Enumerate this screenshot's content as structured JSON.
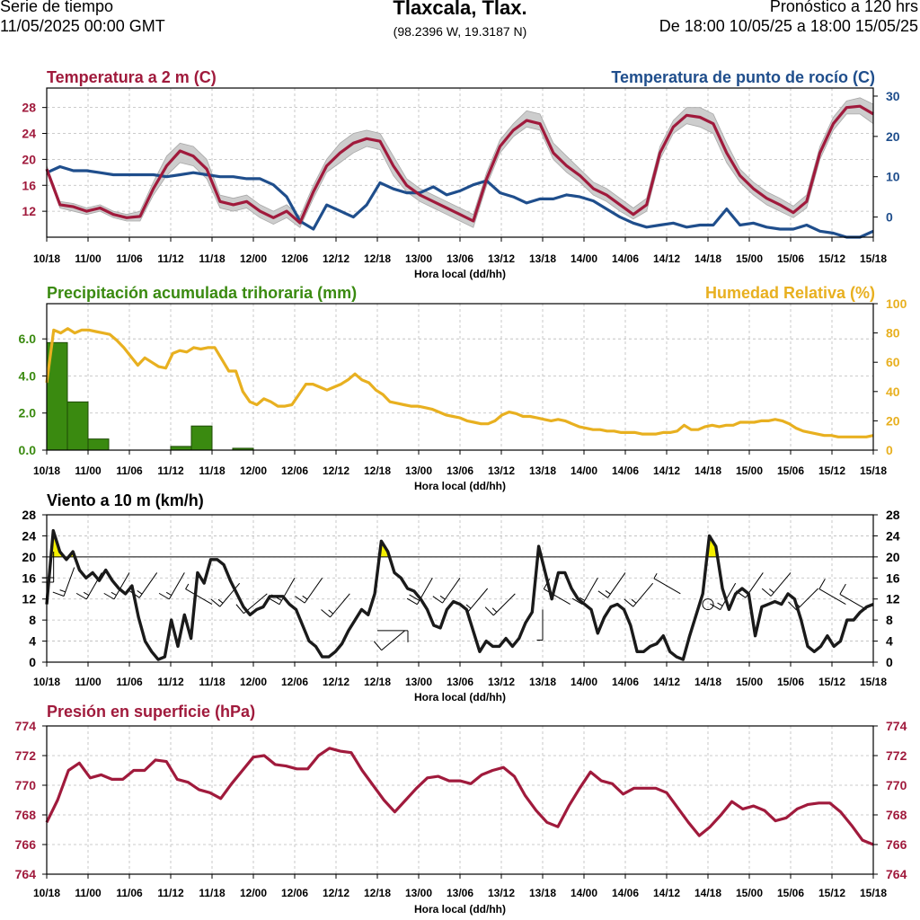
{
  "header": {
    "left_line1": "Serie de tiempo",
    "left_line2": "11/05/2025 00:00 GMT",
    "title": "Tlaxcala, Tlax.",
    "coords": "(98.2396 W, 19.3187 N)",
    "right_line1": "Pronóstico a 120 hrs",
    "right_line2": "De 18:00 10/05/25 a 18:00 15/05/25"
  },
  "colors": {
    "temperature": "#a01a3c",
    "dewpoint": "#1f4e8c",
    "precipitation": "#3a8a10",
    "humidity": "#e8b020",
    "wind": "#1a1a1a",
    "gust": "#f5f000",
    "pressure": "#a01a3c",
    "spread": "#c8c8c8"
  },
  "x_tick_labels": [
    "10/18",
    "11/00",
    "11/06",
    "11/12",
    "11/18",
    "12/00",
    "12/06",
    "12/12",
    "12/18",
    "13/00",
    "13/06",
    "13/12",
    "13/18",
    "14/00",
    "14/06",
    "14/12",
    "14/18",
    "15/00",
    "15/06",
    "15/12",
    "15/18"
  ],
  "x_axis_label": "Hora local (dd/hh)",
  "chart_data": [
    {
      "type": "line",
      "title": "Temperatura a 2 m (C)",
      "title_right": "Temperatura de punto de rocío (C)",
      "xlabel": "Hora local (dd/hh)",
      "ylim": [
        8,
        31
      ],
      "ylim_right": [
        -5,
        32
      ],
      "yticks": [
        "12",
        "16",
        "20",
        "24",
        "28"
      ],
      "yticks_right": [
        "0",
        "10",
        "20",
        "30"
      ],
      "series": [
        {
          "name": "Temperatura a 2 m",
          "axis": "left",
          "values": [
            18.5,
            13,
            12.7,
            12,
            12.5,
            11.5,
            11,
            11.2,
            15.5,
            19,
            21.3,
            20.5,
            18.5,
            13.5,
            13,
            13.5,
            12,
            11,
            12,
            10.2,
            15,
            19,
            21,
            22.5,
            23.2,
            22.8,
            19,
            16,
            14.5,
            13.5,
            12.5,
            11.5,
            10.5,
            17,
            22,
            24.5,
            26,
            25.5,
            21,
            19,
            17.5,
            15.5,
            14.5,
            13,
            11.5,
            13,
            21,
            25,
            26.8,
            26.5,
            25.5,
            21,
            17.5,
            15.5,
            14,
            13,
            11.8,
            13.5,
            21,
            25.5,
            28,
            28.2,
            27
          ]
        },
        {
          "name": "Temperatura de punto de rocío",
          "axis": "right",
          "values": [
            11,
            12.5,
            11.5,
            11.5,
            11,
            10.5,
            10.5,
            10.5,
            10.5,
            10,
            10.5,
            11,
            10.5,
            10,
            10,
            9.5,
            9.5,
            8,
            5,
            -1,
            -3,
            3,
            1.5,
            0,
            3,
            8.5,
            7,
            6,
            6,
            7.5,
            5.5,
            6.5,
            8,
            9,
            6,
            5,
            3.5,
            4.5,
            4.5,
            5.5,
            5,
            4,
            2,
            0,
            -1.5,
            -2.5,
            -2,
            -1.5,
            -2.5,
            -2,
            -2,
            2,
            -2,
            -1.5,
            -2.5,
            -3,
            -3,
            -2,
            -3.5,
            -4,
            -5,
            -5,
            -3.5
          ]
        }
      ],
      "spread": {
        "name": "Ensamble",
        "upper": [
          19,
          13.5,
          13.2,
          12.5,
          13,
          12,
          11.5,
          12,
          16.5,
          20.5,
          22.5,
          22,
          20,
          14.5,
          14,
          14.5,
          13,
          12,
          13,
          11.2,
          16,
          20,
          22.5,
          24,
          24.5,
          24,
          20.5,
          17,
          15.5,
          14.5,
          13.5,
          12.5,
          11.5,
          18,
          23,
          25.5,
          27.5,
          27,
          22.5,
          20.5,
          18.5,
          16.5,
          15.5,
          14,
          12.5,
          14,
          22,
          26,
          28,
          28,
          27,
          22.5,
          18.5,
          16.5,
          15,
          14,
          12.8,
          14.5,
          22,
          26.5,
          29,
          29.5,
          28.5
        ],
        "lower": [
          18,
          12.5,
          12,
          11.5,
          12,
          11,
          10.5,
          10.5,
          14.5,
          17.5,
          19.5,
          19,
          17,
          12.5,
          12,
          12.5,
          11,
          10,
          11,
          9.5,
          14,
          18,
          19.5,
          21,
          22,
          21.5,
          17.5,
          15,
          13.5,
          12.5,
          11.5,
          10.5,
          9.5,
          16,
          21,
          23.5,
          25,
          24.5,
          20,
          18,
          16.5,
          14.5,
          13.5,
          12,
          10.8,
          12,
          20,
          24,
          25.5,
          25,
          24,
          19.5,
          16.5,
          14.5,
          13,
          12,
          11,
          12.5,
          20,
          24.5,
          27,
          27,
          25.5
        ]
      }
    },
    {
      "type": "bar",
      "title": "Precipitación acumulada trihoraria (mm)",
      "title_right": "Humedad Relativa (%)",
      "xlabel": "Hora local (dd/hh)",
      "ylim": [
        0,
        7.9
      ],
      "ylim_right": [
        0,
        100
      ],
      "yticks": [
        "0.0",
        "2.0",
        "4.0",
        "6.0"
      ],
      "yticks_right": [
        "0",
        "20",
        "40",
        "60",
        "80",
        "100"
      ],
      "bars": {
        "start_hours": [
          0,
          3,
          6,
          9,
          12,
          15,
          18,
          21,
          24,
          27,
          30,
          33,
          36
        ],
        "values": [
          5.8,
          2.6,
          0.6,
          0,
          0,
          0,
          0.2,
          1.3,
          0,
          0.1,
          0,
          0,
          0
        ]
      },
      "series": [
        {
          "name": "Humedad Relativa",
          "axis": "right",
          "values": [
            46,
            82,
            80,
            83,
            80,
            82,
            82,
            81,
            80,
            79,
            75,
            70,
            64,
            58,
            63,
            60,
            57,
            56,
            66,
            68,
            67,
            70,
            69,
            70,
            70,
            62,
            54,
            54,
            40,
            33,
            31,
            35,
            33,
            30,
            30,
            31,
            38,
            45,
            45,
            43,
            41,
            43,
            45,
            48,
            52,
            48,
            46,
            41,
            38,
            33,
            32,
            31,
            30,
            30,
            29,
            28,
            26,
            24,
            23,
            22,
            20,
            19,
            18,
            18,
            20,
            24,
            26,
            25,
            23,
            23,
            22,
            21,
            20,
            21,
            20,
            18,
            16,
            15,
            14,
            14,
            13,
            13,
            12,
            12,
            12,
            11,
            11,
            11,
            12,
            12,
            13,
            17,
            14,
            14,
            16,
            17,
            16,
            17,
            17,
            19,
            19,
            19,
            20,
            20,
            21,
            20,
            18,
            15,
            13,
            12,
            11,
            10,
            10,
            9,
            9,
            9,
            9,
            9,
            10
          ]
        }
      ]
    },
    {
      "type": "line",
      "title": "Viento a 10 m (km/h)",
      "xlabel": "Hora local (dd/hh)",
      "ylim": [
        0,
        28
      ],
      "yticks": [
        "0",
        "4",
        "8",
        "12",
        "16",
        "20",
        "24",
        "28"
      ],
      "series": [
        {
          "name": "Viento a 10 m",
          "values": [
            11,
            25,
            21,
            19.5,
            21,
            17.5,
            16,
            17,
            15.5,
            17.5,
            15.5,
            14,
            13,
            14.5,
            8.5,
            4,
            2,
            0.5,
            1,
            8,
            3,
            9,
            4.5,
            17,
            15,
            19.5,
            19.5,
            18.5,
            15.5,
            13,
            10.5,
            9,
            10,
            10.5,
            12.5,
            12.5,
            12.5,
            11,
            10,
            7,
            4,
            3,
            1,
            1,
            2,
            3.5,
            6,
            8,
            10,
            9,
            13,
            23,
            21,
            17,
            16,
            14,
            13.5,
            12,
            10,
            7,
            6.5,
            10,
            11.5,
            11,
            10,
            6,
            2,
            4,
            3,
            3,
            4.5,
            3,
            4.5,
            7.5,
            9.5,
            22,
            17,
            12,
            17,
            17,
            14,
            12,
            11,
            10,
            5.5,
            8.5,
            10.5,
            11,
            10,
            7,
            2,
            2,
            3,
            3.5,
            5,
            2,
            1,
            0.5,
            5,
            9,
            13,
            24,
            22,
            14,
            10,
            13,
            14,
            13,
            5,
            10.5,
            11,
            11.5,
            11,
            13,
            12,
            8,
            3,
            2,
            3,
            5,
            3,
            4,
            8,
            8,
            9.5,
            10.5,
            11
          ]
        },
        {
          "name": "Umbral 20 km/h",
          "values": [
            20,
            20
          ]
        }
      ],
      "barbs": [
        {
          "x": 1,
          "y": 21,
          "dir": 180,
          "speed": 20
        },
        {
          "x": 4,
          "y": 18,
          "dir": 200,
          "speed": 15
        },
        {
          "x": 8,
          "y": 17,
          "dir": 210,
          "speed": 15
        },
        {
          "x": 12,
          "y": 17,
          "dir": 210,
          "speed": 15
        },
        {
          "x": 16,
          "y": 17,
          "dir": 215,
          "speed": 15
        },
        {
          "x": 20,
          "y": 17,
          "dir": 210,
          "speed": 15
        },
        {
          "x": 24,
          "y": 11,
          "dir": 300,
          "speed": 5
        },
        {
          "x": 28,
          "y": 15,
          "dir": 220,
          "speed": 15
        },
        {
          "x": 32,
          "y": 13,
          "dir": 230,
          "speed": 15
        },
        {
          "x": 36,
          "y": 16,
          "dir": 210,
          "speed": 20
        },
        {
          "x": 40,
          "y": 16,
          "dir": 215,
          "speed": 15
        },
        {
          "x": 44,
          "y": 13,
          "dir": 220,
          "speed": 15
        },
        {
          "x": 48,
          "y": 6,
          "dir": 90,
          "speed": 10
        },
        {
          "x": 52,
          "y": 6,
          "dir": 230,
          "speed": 10
        },
        {
          "x": 56,
          "y": 16,
          "dir": 210,
          "speed": 20
        },
        {
          "x": 60,
          "y": 16,
          "dir": 215,
          "speed": 15
        },
        {
          "x": 64,
          "y": 14,
          "dir": 220,
          "speed": 15
        },
        {
          "x": 68,
          "y": 13,
          "dir": 225,
          "speed": 15
        },
        {
          "x": 72,
          "y": 10,
          "dir": 180,
          "speed": 5
        },
        {
          "x": 76,
          "y": 11,
          "dir": 300,
          "speed": 10
        },
        {
          "x": 80,
          "y": 16,
          "dir": 210,
          "speed": 15
        },
        {
          "x": 84,
          "y": 17,
          "dir": 215,
          "speed": 15
        },
        {
          "x": 88,
          "y": 15,
          "dir": 220,
          "speed": 15
        },
        {
          "x": 92,
          "y": 13,
          "dir": 300,
          "speed": 5
        },
        {
          "x": 96,
          "y": 11,
          "dir": 0,
          "speed": 0
        },
        {
          "x": 100,
          "y": 15,
          "dir": 210,
          "speed": 15
        },
        {
          "x": 104,
          "y": 17,
          "dir": 215,
          "speed": 15
        },
        {
          "x": 108,
          "y": 17,
          "dir": 220,
          "speed": 15
        },
        {
          "x": 112,
          "y": 14,
          "dir": 225,
          "speed": 15
        },
        {
          "x": 116,
          "y": 11,
          "dir": 300,
          "speed": 10
        },
        {
          "x": 119,
          "y": 10,
          "dir": 300,
          "speed": 10
        }
      ]
    },
    {
      "type": "line",
      "title": "Presión en superficie (hPa)",
      "xlabel": "Hora local (dd/hh)",
      "ylim": [
        764,
        774
      ],
      "yticks": [
        "764",
        "766",
        "768",
        "770",
        "772",
        "774"
      ],
      "series": [
        {
          "name": "Presión en superficie",
          "values": [
            767.5,
            769,
            771,
            771.5,
            770.5,
            770.7,
            770.4,
            770.4,
            771,
            771,
            771.7,
            771.6,
            770.4,
            770.2,
            769.7,
            769.5,
            769.1,
            770.1,
            771,
            771.9,
            772,
            771.4,
            771.3,
            771.1,
            771.1,
            772,
            772.5,
            772.3,
            772.2,
            771,
            770,
            769,
            768.2,
            769,
            769.8,
            770.5,
            770.6,
            770.3,
            770.3,
            770.1,
            770.7,
            771,
            771.2,
            770.6,
            769.3,
            768.3,
            767.5,
            767.2,
            768.6,
            769.8,
            770.9,
            770.3,
            770.1,
            769.4,
            769.8,
            769.8,
            769.8,
            769.5,
            768.5,
            767.5,
            766.6,
            767.2,
            768,
            768.9,
            768.4,
            768.6,
            768.3,
            767.6,
            767.8,
            768.4,
            768.7,
            768.8,
            768.8,
            768.2,
            767.3,
            766.3,
            766
          ]
        }
      ]
    }
  ]
}
